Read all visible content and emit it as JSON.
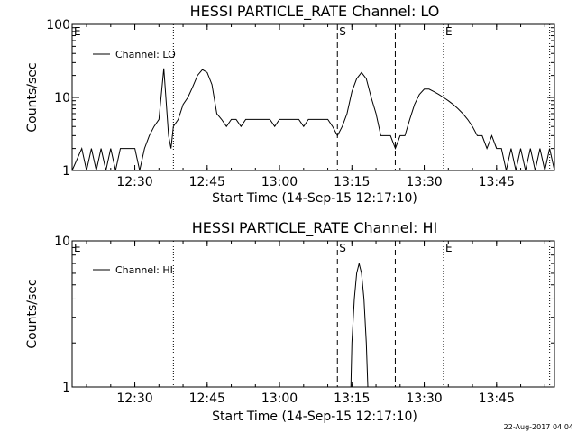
{
  "charts": [
    {
      "title": "HESSI PARTICLE_RATE Channel: LO",
      "xlabel": "Start Time (14-Sep-15 12:17:10)",
      "ylabel": "Counts/sec",
      "legend": "Channel: LO",
      "yticks": [
        "1",
        "10",
        "100"
      ],
      "xticks": [
        "12:30",
        "12:45",
        "13:00",
        "13:15",
        "13:30",
        "13:45"
      ]
    },
    {
      "title": "HESSI PARTICLE_RATE Channel: HI",
      "xlabel": "Start Time (14-Sep-15 12:17:10)",
      "ylabel": "Counts/sec",
      "legend": "Channel: HI",
      "yticks": [
        "1",
        "10"
      ],
      "xticks": [
        "12:30",
        "12:45",
        "13:00",
        "13:15",
        "13:30",
        "13:45"
      ]
    }
  ],
  "footer": "22-Aug-2017 04:04",
  "chart_data": [
    {
      "type": "line",
      "title": "HESSI PARTICLE_RATE Channel: LO",
      "xlabel": "Start Time (14-Sep-15 12:17:10)",
      "ylabel": "Counts/sec",
      "yscale": "log",
      "xlim": [
        "12:17",
        "13:57"
      ],
      "ylim": [
        1,
        100
      ],
      "xticks": [
        "12:30",
        "12:45",
        "13:00",
        "13:15",
        "13:30",
        "13:45"
      ],
      "yticks": [
        1,
        10,
        100
      ],
      "legend_position": "top-left",
      "markers": [
        {
          "time": "12:17",
          "label": "E",
          "style": "dotted"
        },
        {
          "time": "12:38",
          "label": "",
          "style": "dotted"
        },
        {
          "time": "13:12",
          "label": "S",
          "style": "dashed"
        },
        {
          "time": "13:24",
          "label": "",
          "style": "dashed"
        },
        {
          "time": "13:34",
          "label": "E",
          "style": "dotted"
        },
        {
          "time": "13:56",
          "label": "",
          "style": "dotted"
        }
      ],
      "series": [
        {
          "name": "Channel: LO",
          "x": [
            "12:17",
            "12:19",
            "12:20",
            "12:21",
            "12:22",
            "12:23",
            "12:24",
            "12:25",
            "12:26",
            "12:27",
            "12:28",
            "12:29",
            "12:30",
            "12:31",
            "12:32",
            "12:33",
            "12:34",
            "12:35",
            "12:36",
            "12:37",
            "12:37.5",
            "12:38",
            "12:39",
            "12:40",
            "12:41",
            "12:42",
            "12:43",
            "12:44",
            "12:45",
            "12:46",
            "12:47",
            "12:48",
            "12:49",
            "12:50",
            "12:51",
            "12:52",
            "12:53",
            "12:54",
            "12:55",
            "12:56",
            "12:57",
            "12:58",
            "12:59",
            "13:00",
            "13:01",
            "13:02",
            "13:03",
            "13:04",
            "13:05",
            "13:06",
            "13:07",
            "13:08",
            "13:09",
            "13:10",
            "13:11",
            "13:12",
            "13:13",
            "13:14",
            "13:15",
            "13:16",
            "13:17",
            "13:18",
            "13:19",
            "13:20",
            "13:21",
            "13:22",
            "13:23",
            "13:24",
            "13:25",
            "13:26",
            "13:27",
            "13:28",
            "13:29",
            "13:30",
            "13:31",
            "13:32",
            "13:33",
            "13:34",
            "13:35",
            "13:36",
            "13:37",
            "13:38",
            "13:39",
            "13:40",
            "13:41",
            "13:42",
            "13:43",
            "13:44",
            "13:45",
            "13:46",
            "13:47",
            "13:48",
            "13:49",
            "13:50",
            "13:51",
            "13:52",
            "13:53",
            "13:54",
            "13:55",
            "13:56",
            "13:57"
          ],
          "y": [
            1,
            2,
            1,
            2,
            1,
            2,
            1,
            2,
            1,
            2,
            2,
            2,
            2,
            1,
            2,
            3,
            4,
            5,
            25,
            3,
            2,
            4,
            5,
            8,
            10,
            14,
            20,
            24,
            22,
            15,
            6,
            5,
            4,
            5,
            5,
            4,
            5,
            5,
            5,
            5,
            5,
            5,
            4,
            5,
            5,
            5,
            5,
            5,
            4,
            5,
            5,
            5,
            5,
            5,
            4,
            3,
            4,
            6,
            12,
            18,
            22,
            18,
            10,
            6,
            3,
            3,
            3,
            2,
            3,
            3,
            5,
            8,
            11,
            13,
            13,
            12,
            11,
            10,
            9,
            8,
            7,
            6,
            5,
            4,
            3,
            3,
            2,
            3,
            2,
            2,
            1,
            2,
            1,
            2,
            1,
            2,
            1,
            2,
            1,
            2,
            1
          ]
        }
      ]
    },
    {
      "type": "line",
      "title": "HESSI PARTICLE_RATE Channel: HI",
      "xlabel": "Start Time (14-Sep-15 12:17:10)",
      "ylabel": "Counts/sec",
      "yscale": "log",
      "xlim": [
        "12:17",
        "13:57"
      ],
      "ylim": [
        1,
        10
      ],
      "xticks": [
        "12:30",
        "12:45",
        "13:00",
        "13:15",
        "13:30",
        "13:45"
      ],
      "yticks": [
        1,
        10
      ],
      "legend_position": "top-left",
      "markers": [
        {
          "time": "12:17",
          "label": "E",
          "style": "dotted"
        },
        {
          "time": "12:38",
          "label": "",
          "style": "dotted"
        },
        {
          "time": "13:12",
          "label": "S",
          "style": "dashed"
        },
        {
          "time": "13:24",
          "label": "",
          "style": "dashed"
        },
        {
          "time": "13:34",
          "label": "E",
          "style": "dotted"
        },
        {
          "time": "13:56",
          "label": "",
          "style": "dotted"
        }
      ],
      "series": [
        {
          "name": "Channel: HI",
          "x": [
            "13:14.8",
            "13:15",
            "13:15.5",
            "13:16",
            "13:16.5",
            "13:17",
            "13:17.5",
            "13:18",
            "13:18.3"
          ],
          "y": [
            1,
            2,
            4,
            6,
            7,
            6,
            4,
            2,
            1
          ]
        }
      ]
    }
  ]
}
